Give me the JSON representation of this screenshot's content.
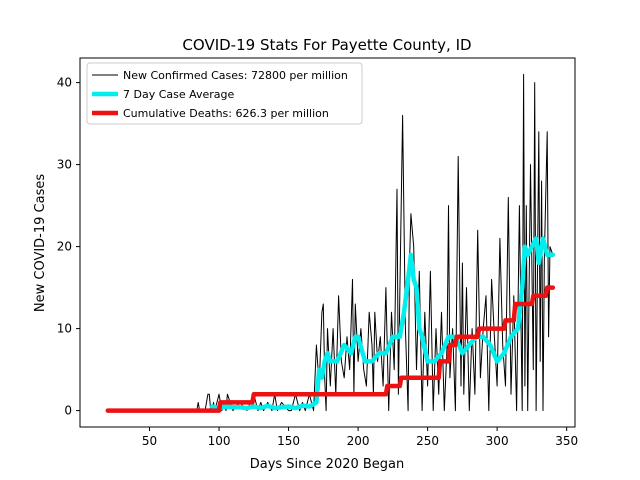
{
  "chart_data": {
    "type": "line",
    "title": "COVID-19 Stats For Payette County, ID",
    "xlabel": "Days Since 2020 Began",
    "ylabel": "New COVID-19 Cases",
    "xlim": [
      0,
      356
    ],
    "ylim": [
      -2,
      43
    ],
    "xticks": [
      50,
      100,
      150,
      200,
      250,
      300,
      350
    ],
    "yticks": [
      0,
      10,
      20,
      30,
      40
    ],
    "grid": false,
    "legend_position": "top-left",
    "series": [
      {
        "name": "New Confirmed Cases: 72800 per million",
        "color": "#000000",
        "x": [
          20,
          30,
          40,
          50,
          60,
          70,
          80,
          84,
          85,
          86,
          90,
          92,
          93,
          94,
          95,
          96,
          97,
          100,
          102,
          104,
          105,
          106,
          110,
          115,
          120,
          125,
          128,
          130,
          132,
          135,
          138,
          140,
          142,
          145,
          150,
          152,
          155,
          158,
          160,
          162,
          165,
          168,
          170,
          172,
          174,
          175,
          176,
          177,
          178,
          180,
          182,
          184,
          186,
          188,
          190,
          192,
          194,
          196,
          197,
          198,
          200,
          202,
          204,
          206,
          208,
          210,
          211,
          212,
          214,
          216,
          218,
          220,
          222,
          224,
          226,
          228,
          229,
          230,
          232,
          234,
          236,
          237,
          238,
          240,
          242,
          244,
          246,
          248,
          250,
          252,
          254,
          256,
          258,
          260,
          262,
          264,
          265,
          266,
          268,
          270,
          272,
          274,
          275,
          276,
          278,
          280,
          282,
          284,
          286,
          288,
          290,
          292,
          294,
          296,
          298,
          300,
          302,
          304,
          306,
          308,
          310,
          312,
          314,
          316,
          318,
          319,
          320,
          321,
          322,
          324,
          326,
          327,
          328,
          330,
          331,
          332,
          333,
          334,
          336,
          337,
          338,
          340
        ],
        "values": [
          0,
          0,
          0,
          0,
          0,
          0,
          0,
          0,
          1,
          0,
          0,
          2,
          2,
          0,
          0,
          1,
          0,
          2,
          0,
          1,
          0,
          2,
          0,
          1,
          0,
          2,
          0,
          1,
          0,
          1,
          0,
          2,
          0,
          1,
          0,
          0,
          2,
          0,
          1,
          0,
          2,
          0,
          8,
          3,
          12,
          13,
          4,
          0,
          10,
          3,
          10,
          2,
          14,
          6,
          4,
          9,
          5,
          16,
          2,
          13,
          6,
          10,
          5,
          3,
          12,
          8,
          2,
          12,
          6,
          9,
          3,
          15,
          0,
          12,
          5,
          27,
          2,
          14,
          36,
          10,
          0,
          18,
          24,
          20,
          5,
          17,
          0,
          12,
          3,
          17,
          0,
          10,
          2,
          12,
          0,
          8,
          25,
          4,
          10,
          0,
          31,
          3,
          18,
          2,
          15,
          0,
          10,
          2,
          22,
          4,
          10,
          14,
          0,
          16,
          9,
          3,
          21,
          8,
          3,
          26,
          2,
          14,
          0,
          25,
          0,
          41,
          3,
          25,
          0,
          30,
          5,
          40,
          0,
          34,
          6,
          28,
          0,
          19,
          34,
          9,
          20,
          19
        ]
      },
      {
        "name": "7 Day Case Average",
        "color": "#00eeee",
        "x": [
          95,
          100,
          105,
          110,
          115,
          120,
          125,
          130,
          135,
          140,
          145,
          150,
          155,
          160,
          165,
          170,
          172,
          174,
          176,
          178,
          180,
          185,
          190,
          195,
          198,
          200,
          205,
          210,
          215,
          220,
          225,
          230,
          233,
          236,
          238,
          240,
          242,
          244,
          246,
          250,
          255,
          260,
          265,
          270,
          275,
          280,
          285,
          290,
          295,
          300,
          305,
          310,
          315,
          318,
          320,
          322,
          325,
          328,
          330,
          333,
          336,
          340
        ],
        "values": [
          0.5,
          0.3,
          0.5,
          0.4,
          0.4,
          0.3,
          0.5,
          0.3,
          0.6,
          0.3,
          0.4,
          0.5,
          0.3,
          0.6,
          0.5,
          1,
          5,
          4,
          6,
          7,
          6,
          6,
          8,
          7,
          9,
          9,
          6,
          6,
          7,
          7,
          9,
          9,
          12,
          16,
          19,
          16,
          15,
          10,
          9,
          6,
          6,
          7,
          9,
          9,
          7,
          8,
          9,
          9,
          8,
          6,
          7,
          9,
          10,
          15,
          20,
          19,
          20,
          21,
          18,
          21,
          19,
          19
        ]
      },
      {
        "name": "Cumulative Deaths: 626.3 per million",
        "color": "#ee1111",
        "x": [
          20,
          100,
          101,
          124,
          125,
          220,
          221,
          230,
          231,
          258,
          259,
          265,
          266,
          270,
          271,
          280,
          281,
          286,
          287,
          305,
          306,
          312,
          313,
          325,
          326,
          335,
          336,
          340
        ],
        "values": [
          0,
          0,
          1,
          1,
          2,
          2,
          3,
          3,
          4,
          4,
          6,
          6,
          8,
          8,
          9,
          9,
          9,
          9,
          10,
          10,
          11,
          11,
          13,
          13,
          14,
          14,
          15,
          15
        ]
      }
    ]
  }
}
